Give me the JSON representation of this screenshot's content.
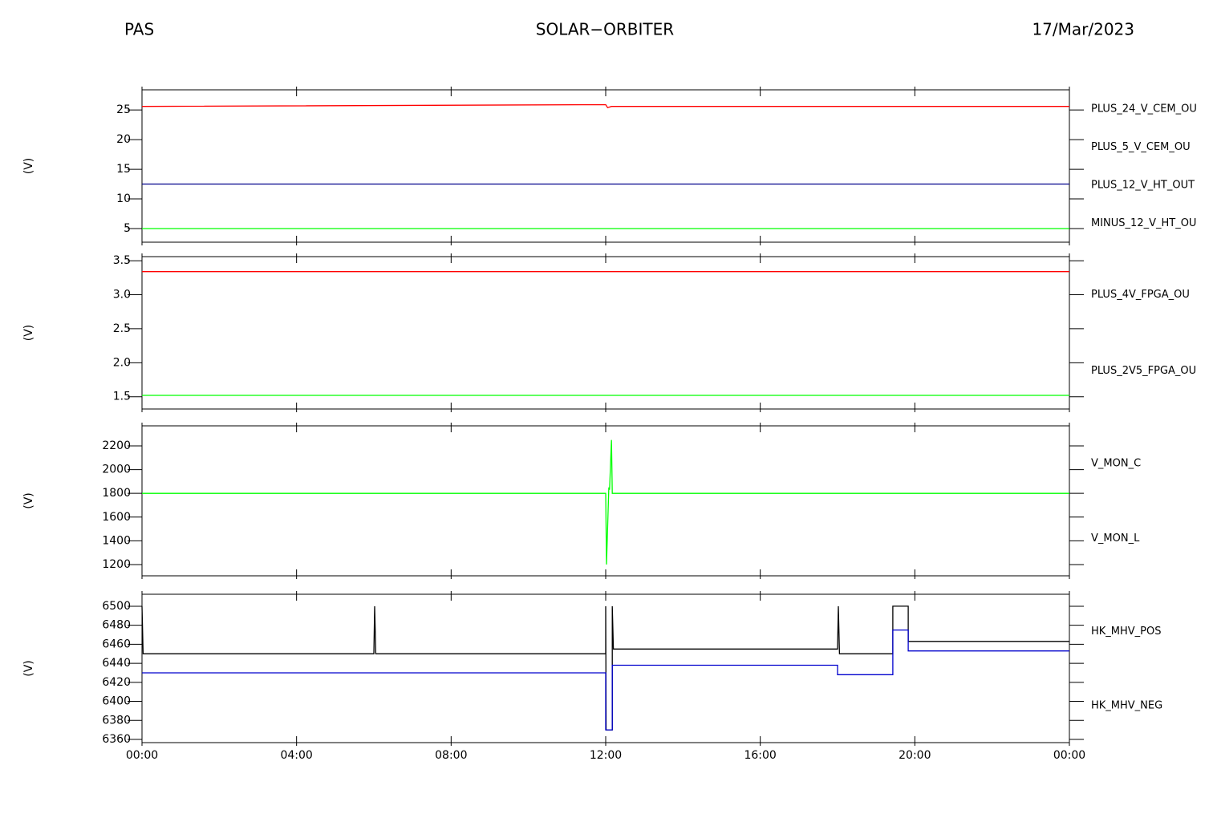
{
  "header": {
    "left": "PAS",
    "center": "SOLAR−ORBITER",
    "right": "17/Mar/2023"
  },
  "chart_data": [
    {
      "type": "line",
      "ylabel": "(V)",
      "xlim": [
        0,
        24
      ],
      "xticks": [
        {
          "value": 0,
          "label": "00:00"
        },
        {
          "value": 4,
          "label": "04:00"
        },
        {
          "value": 8,
          "label": "08:00"
        },
        {
          "value": 12,
          "label": "12:00"
        },
        {
          "value": 16,
          "label": "16:00"
        },
        {
          "value": 20,
          "label": "20:00"
        },
        {
          "value": 24,
          "label": "00:00"
        }
      ],
      "ylim": [
        2.7,
        28.4
      ],
      "yticks": [
        5,
        10,
        15,
        20,
        25
      ],
      "series": [
        {
          "name": "PLUS_24_V_CEM_OU",
          "color": "#ff0000",
          "x": [
            0,
            12,
            12.05,
            12.15,
            24
          ],
          "values": [
            25.6,
            25.9,
            25.4,
            25.6,
            25.6
          ]
        },
        {
          "name": "PLUS_5_V_CEM_OU",
          "color": "#00ff00",
          "x": [
            0,
            24
          ],
          "values": [
            5.0,
            5.0
          ]
        },
        {
          "name": "PLUS_12_V_HT_OUT",
          "color": "#00008b",
          "x": [
            0,
            24
          ],
          "values": [
            12.5,
            12.5
          ]
        },
        {
          "name": "MINUS_12_V_HT_OU",
          "color": "#000000",
          "x": [
            0,
            24
          ],
          "values": [
            null,
            null
          ]
        }
      ]
    },
    {
      "type": "line",
      "ylabel": "(V)",
      "xlim": [
        0,
        24
      ],
      "xticks": [
        {
          "value": 0,
          "label": "00:00"
        },
        {
          "value": 4,
          "label": "04:00"
        },
        {
          "value": 8,
          "label": "08:00"
        },
        {
          "value": 12,
          "label": "12:00"
        },
        {
          "value": 16,
          "label": "16:00"
        },
        {
          "value": 20,
          "label": "20:00"
        },
        {
          "value": 24,
          "label": "00:00"
        }
      ],
      "ylim": [
        1.32,
        3.56
      ],
      "yticks": [
        {
          "value": 1.5,
          "label": "1.5"
        },
        {
          "value": 2,
          "label": "2.0"
        },
        {
          "value": 2.5,
          "label": "2.5"
        },
        {
          "value": 3,
          "label": "3.0"
        },
        {
          "value": 3.5,
          "label": "3.5"
        }
      ],
      "series": [
        {
          "name": "PLUS_4V_FPGA_OU",
          "color": "#ff0000",
          "x": [
            0,
            24
          ],
          "values": [
            3.34,
            3.34
          ]
        },
        {
          "name": "PLUS_2V5_FPGA_OU",
          "color": "#00ff00",
          "x": [
            0,
            24
          ],
          "values": [
            1.52,
            1.52
          ]
        }
      ]
    },
    {
      "type": "line",
      "ylabel": "(V)",
      "xlim": [
        0,
        24
      ],
      "xticks": [
        {
          "value": 0,
          "label": "00:00"
        },
        {
          "value": 4,
          "label": "04:00"
        },
        {
          "value": 8,
          "label": "08:00"
        },
        {
          "value": 12,
          "label": "12:00"
        },
        {
          "value": 16,
          "label": "16:00"
        },
        {
          "value": 20,
          "label": "20:00"
        },
        {
          "value": 24,
          "label": "00:00"
        }
      ],
      "ylim": [
        1105,
        2369
      ],
      "yticks": [
        1200,
        1400,
        1600,
        1800,
        2000,
        2200
      ],
      "series": [
        {
          "name": "V_MON_C",
          "color": "#ff0000",
          "x": [
            0,
            24
          ],
          "values": [
            null,
            null
          ]
        },
        {
          "name": "V_MON_L",
          "color": "#00ff00",
          "x": [
            0,
            12,
            12.02,
            12.08,
            12.1,
            12.15,
            12.17,
            24
          ],
          "values": [
            1800,
            1800,
            1200,
            1850,
            1830,
            2250,
            1800,
            1800
          ]
        }
      ]
    },
    {
      "type": "line",
      "ylabel": "(V)",
      "xlim": [
        0,
        24
      ],
      "xticks": [
        {
          "value": 0,
          "label": "00:00"
        },
        {
          "value": 4,
          "label": "04:00"
        },
        {
          "value": 8,
          "label": "08:00"
        },
        {
          "value": 12,
          "label": "12:00"
        },
        {
          "value": 16,
          "label": "16:00"
        },
        {
          "value": 20,
          "label": "20:00"
        },
        {
          "value": 24,
          "label": "00:00"
        }
      ],
      "ylim": [
        6356.6,
        6512.6
      ],
      "yticks": [
        6360,
        6380,
        6400,
        6420,
        6440,
        6460,
        6480,
        6500
      ],
      "series": [
        {
          "name": "HK_MHV_POS",
          "color": "#000000",
          "x": [
            0,
            0.03,
            0.05,
            6.0,
            6.02,
            6.05,
            12.0,
            12.0,
            12.01,
            12.17,
            12.17,
            12.2,
            18.0,
            18.02,
            18.05,
            19.43,
            19.43,
            19.83,
            19.83,
            24
          ],
          "values": [
            6500,
            6450,
            6450,
            6450,
            6500,
            6450,
            6450,
            6500,
            6370,
            6370,
            6500,
            6455,
            6455,
            6500,
            6450,
            6450,
            6500,
            6500,
            6463,
            6463
          ]
        },
        {
          "name": "HK_MHV_NEG",
          "color": "#0000cd",
          "x": [
            0,
            12.0,
            12.0,
            12.17,
            12.17,
            18.0,
            18.0,
            19.43,
            19.43,
            19.83,
            19.83,
            24
          ],
          "values": [
            6430,
            6430,
            6370,
            6370,
            6438,
            6438,
            6428,
            6428,
            6475,
            6475,
            6453,
            6453
          ]
        }
      ]
    }
  ]
}
